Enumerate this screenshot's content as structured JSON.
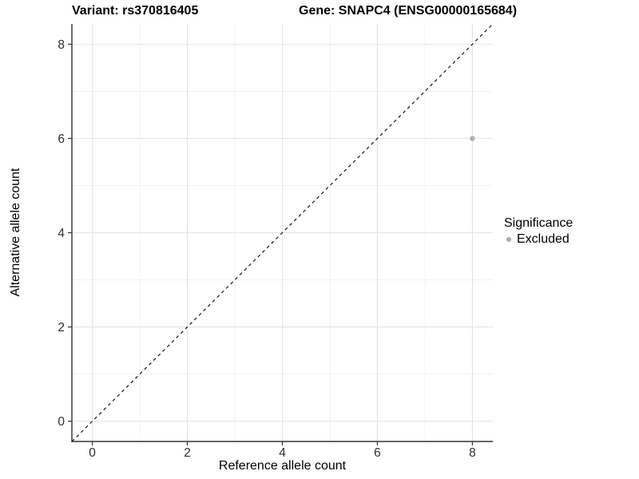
{
  "header": {
    "variant_title": "Variant: rs370816405",
    "gene_title": "Gene: SNAPC4 (ENSG00000165684)"
  },
  "chart_data": {
    "type": "scatter",
    "title": "Variant: rs370816405 — Gene: SNAPC4 (ENSG00000165684)",
    "xlabel": "Reference allele count",
    "ylabel": "Alternative allele count",
    "xlim": [
      -0.43,
      8.43
    ],
    "ylim": [
      -0.43,
      8.43
    ],
    "x_ticks": [
      0,
      2,
      4,
      6,
      8
    ],
    "y_ticks": [
      0,
      2,
      4,
      6,
      8
    ],
    "x_minor_ticks": [
      1,
      3,
      5,
      7
    ],
    "y_minor_ticks": [
      1,
      3,
      5,
      7
    ],
    "grid": "major+minor",
    "identity_line": {
      "style": "dashed",
      "from": -0.43,
      "to": 8.43,
      "color": "#000000"
    },
    "series": [
      {
        "name": "Excluded",
        "color": "#b0b0b0",
        "points": [
          [
            8,
            6
          ]
        ]
      }
    ],
    "legend": {
      "position": "right",
      "title": "Significance",
      "items": [
        {
          "label": "Excluded",
          "marker": "circle",
          "color": "#a9a9a9"
        }
      ]
    },
    "colors": {
      "grid_major": "#e4e4e4",
      "grid_minor": "#f1f1f1",
      "axis_line": "#333333",
      "tick_mark": "#333333",
      "tick_label": "#2e2e2e",
      "background": "#ffffff"
    }
  }
}
